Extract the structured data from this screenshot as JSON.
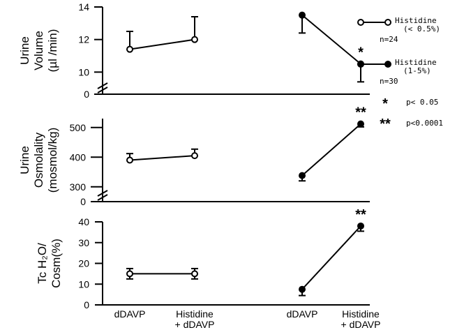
{
  "chart_data": [
    {
      "type": "line",
      "ylabel_lines": [
        "Urine",
        "Volume",
        "(µl /min)"
      ],
      "yticks": [
        10,
        12,
        14
      ],
      "ylim": [
        9.5,
        14
      ],
      "axis_break": true,
      "break_zero_label": "0",
      "series": [
        {
          "name": "Histidine (< 0.5%)",
          "x": [
            "dDAVP",
            "Histidine + dDAVP"
          ],
          "values": [
            11.4,
            12.0
          ],
          "errors": [
            1.1,
            1.4
          ],
          "error_dir": "up"
        },
        {
          "name": "Histidine (1-5%)",
          "x": [
            "dDAVP",
            "Histidine + dDAVP"
          ],
          "values": [
            13.5,
            10.5
          ],
          "errors": [
            1.1,
            1.1
          ],
          "error_dir": "down"
        }
      ],
      "annotations": [
        {
          "text": "*",
          "series": 1,
          "point": 1
        }
      ]
    },
    {
      "type": "line",
      "ylabel_lines": [
        "Urine",
        "Osmolality",
        "(mosmol/kg)"
      ],
      "yticks": [
        300,
        400,
        500
      ],
      "ylim": [
        290,
        530
      ],
      "axis_break": true,
      "break_zero_label": "0",
      "series": [
        {
          "name": "Histidine (< 0.5%)",
          "x": [
            "dDAVP",
            "Histidine + dDAVP"
          ],
          "values": [
            390,
            405
          ],
          "errors": [
            22,
            22
          ],
          "error_dir": "up"
        },
        {
          "name": "Histidine (1-5%)",
          "x": [
            "dDAVP",
            "Histidine + dDAVP"
          ],
          "values": [
            338,
            512
          ],
          "errors": [
            18,
            10
          ],
          "error_dir": "down"
        }
      ],
      "annotations": [
        {
          "text": "**",
          "series": 1,
          "point": 1
        }
      ]
    },
    {
      "type": "line",
      "ylabel_lines": [
        "Tc H₂O/",
        "Cosm(%)"
      ],
      "yticks": [
        0,
        10,
        20,
        30,
        40
      ],
      "ylim": [
        0,
        40
      ],
      "axis_break": false,
      "series": [
        {
          "name": "Histidine (< 0.5%)",
          "x": [
            "dDAVP",
            "Histidine + dDAVP"
          ],
          "values": [
            15,
            15
          ],
          "errors": [
            2.5,
            2.5
          ],
          "error_dir": "both"
        },
        {
          "name": "Histidine (1-5%)",
          "x": [
            "dDAVP",
            "Histidine + dDAVP"
          ],
          "values": [
            7.5,
            38
          ],
          "errors": [
            3,
            2.5
          ],
          "error_dir": "down"
        }
      ],
      "annotations": [
        {
          "text": "**",
          "series": 1,
          "point": 1
        }
      ]
    }
  ],
  "x_categories": [
    {
      "label_lines": [
        "dDAVP"
      ]
    },
    {
      "label_lines": [
        "Histidine",
        "+ dDAVP"
      ]
    },
    {
      "label_lines": [
        "dDAVP"
      ]
    },
    {
      "label_lines": [
        "Histidine",
        "+ dDAVP"
      ]
    }
  ],
  "legend": {
    "placement": "right",
    "items": [
      {
        "label": "Histidine",
        "sublabel": "(< 0.5%)",
        "n": "n=24",
        "marker": "open"
      },
      {
        "label": "Histidine",
        "sublabel": "(1-5%)",
        "n": "n=30",
        "marker": "filled"
      }
    ]
  },
  "significance": [
    {
      "symbol": "*",
      "text": "p< 0.05"
    },
    {
      "symbol": "**",
      "text": "p<0.0001"
    }
  ],
  "colors": {
    "ink": "#000000",
    "background": "#ffffff"
  }
}
